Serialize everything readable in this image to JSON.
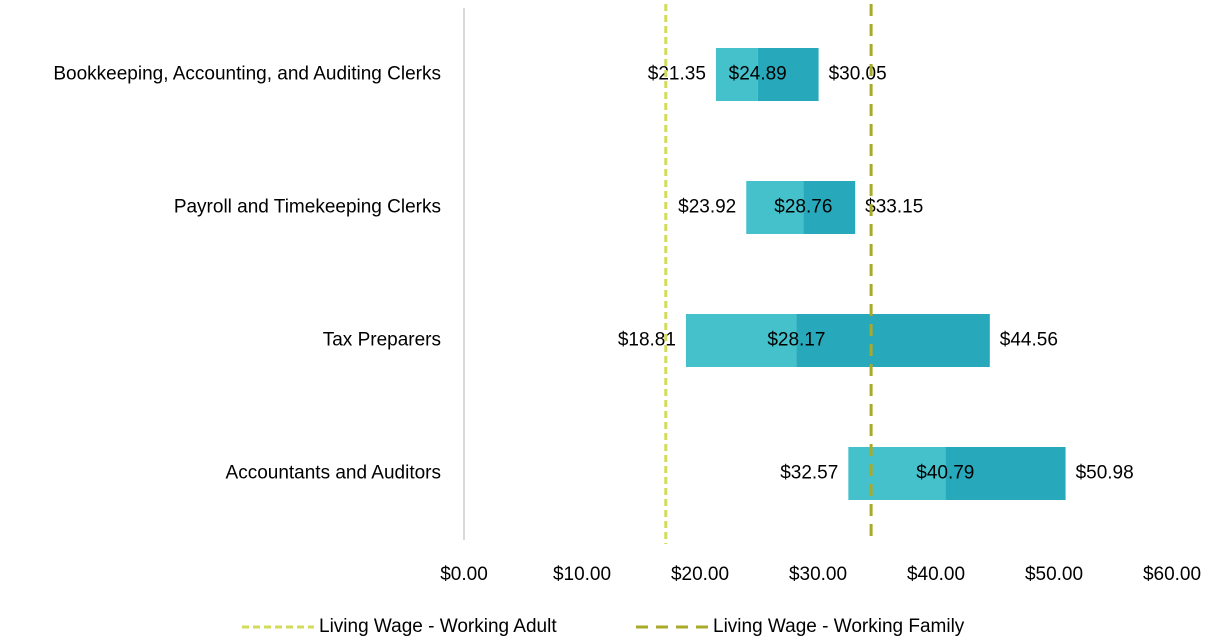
{
  "chart_data": {
    "type": "floating_bar",
    "categories": [
      "Bookkeeping, Accounting, and Auditing Clerks",
      "Payroll and Timekeeping Clerks",
      "Tax Preparers",
      "Accountants and Auditors"
    ],
    "series": [
      {
        "color": "#45c1cc",
        "values": [
          21.35,
          23.92,
          18.81,
          32.57
        ],
        "value_labels": [
          "$21.35",
          "$23.92",
          "$18.81",
          "$32.57"
        ]
      },
      {
        "color": "#27a9bb",
        "values": [
          24.89,
          28.76,
          28.17,
          40.79
        ],
        "value_labels": [
          "$24.89",
          "$28.76",
          "$28.17",
          "$40.79"
        ]
      },
      {
        "values": [
          30.05,
          33.15,
          44.56,
          50.98
        ],
        "value_labels": [
          "$30.05",
          "$33.15",
          "$44.56",
          "$50.98"
        ]
      }
    ],
    "reference_lines": [
      {
        "name": "Living Wage - Working Adult",
        "color": "#d3dc5a",
        "value": 17.1,
        "dash": "7 4"
      },
      {
        "name": "Living Wage - Working Family",
        "color": "#a8ab2a",
        "value": 34.5,
        "dash": "12 8"
      }
    ],
    "xlim": [
      0,
      60
    ],
    "xticks": [
      {
        "value": 0,
        "label": "$0.00"
      },
      {
        "value": 10,
        "label": "$10.00"
      },
      {
        "value": 20,
        "label": "$20.00"
      },
      {
        "value": 30,
        "label": "$30.00"
      },
      {
        "value": 40,
        "label": "$40.00"
      },
      {
        "value": 50,
        "label": "$50.00"
      },
      {
        "value": 60,
        "label": "$60.00"
      }
    ]
  }
}
